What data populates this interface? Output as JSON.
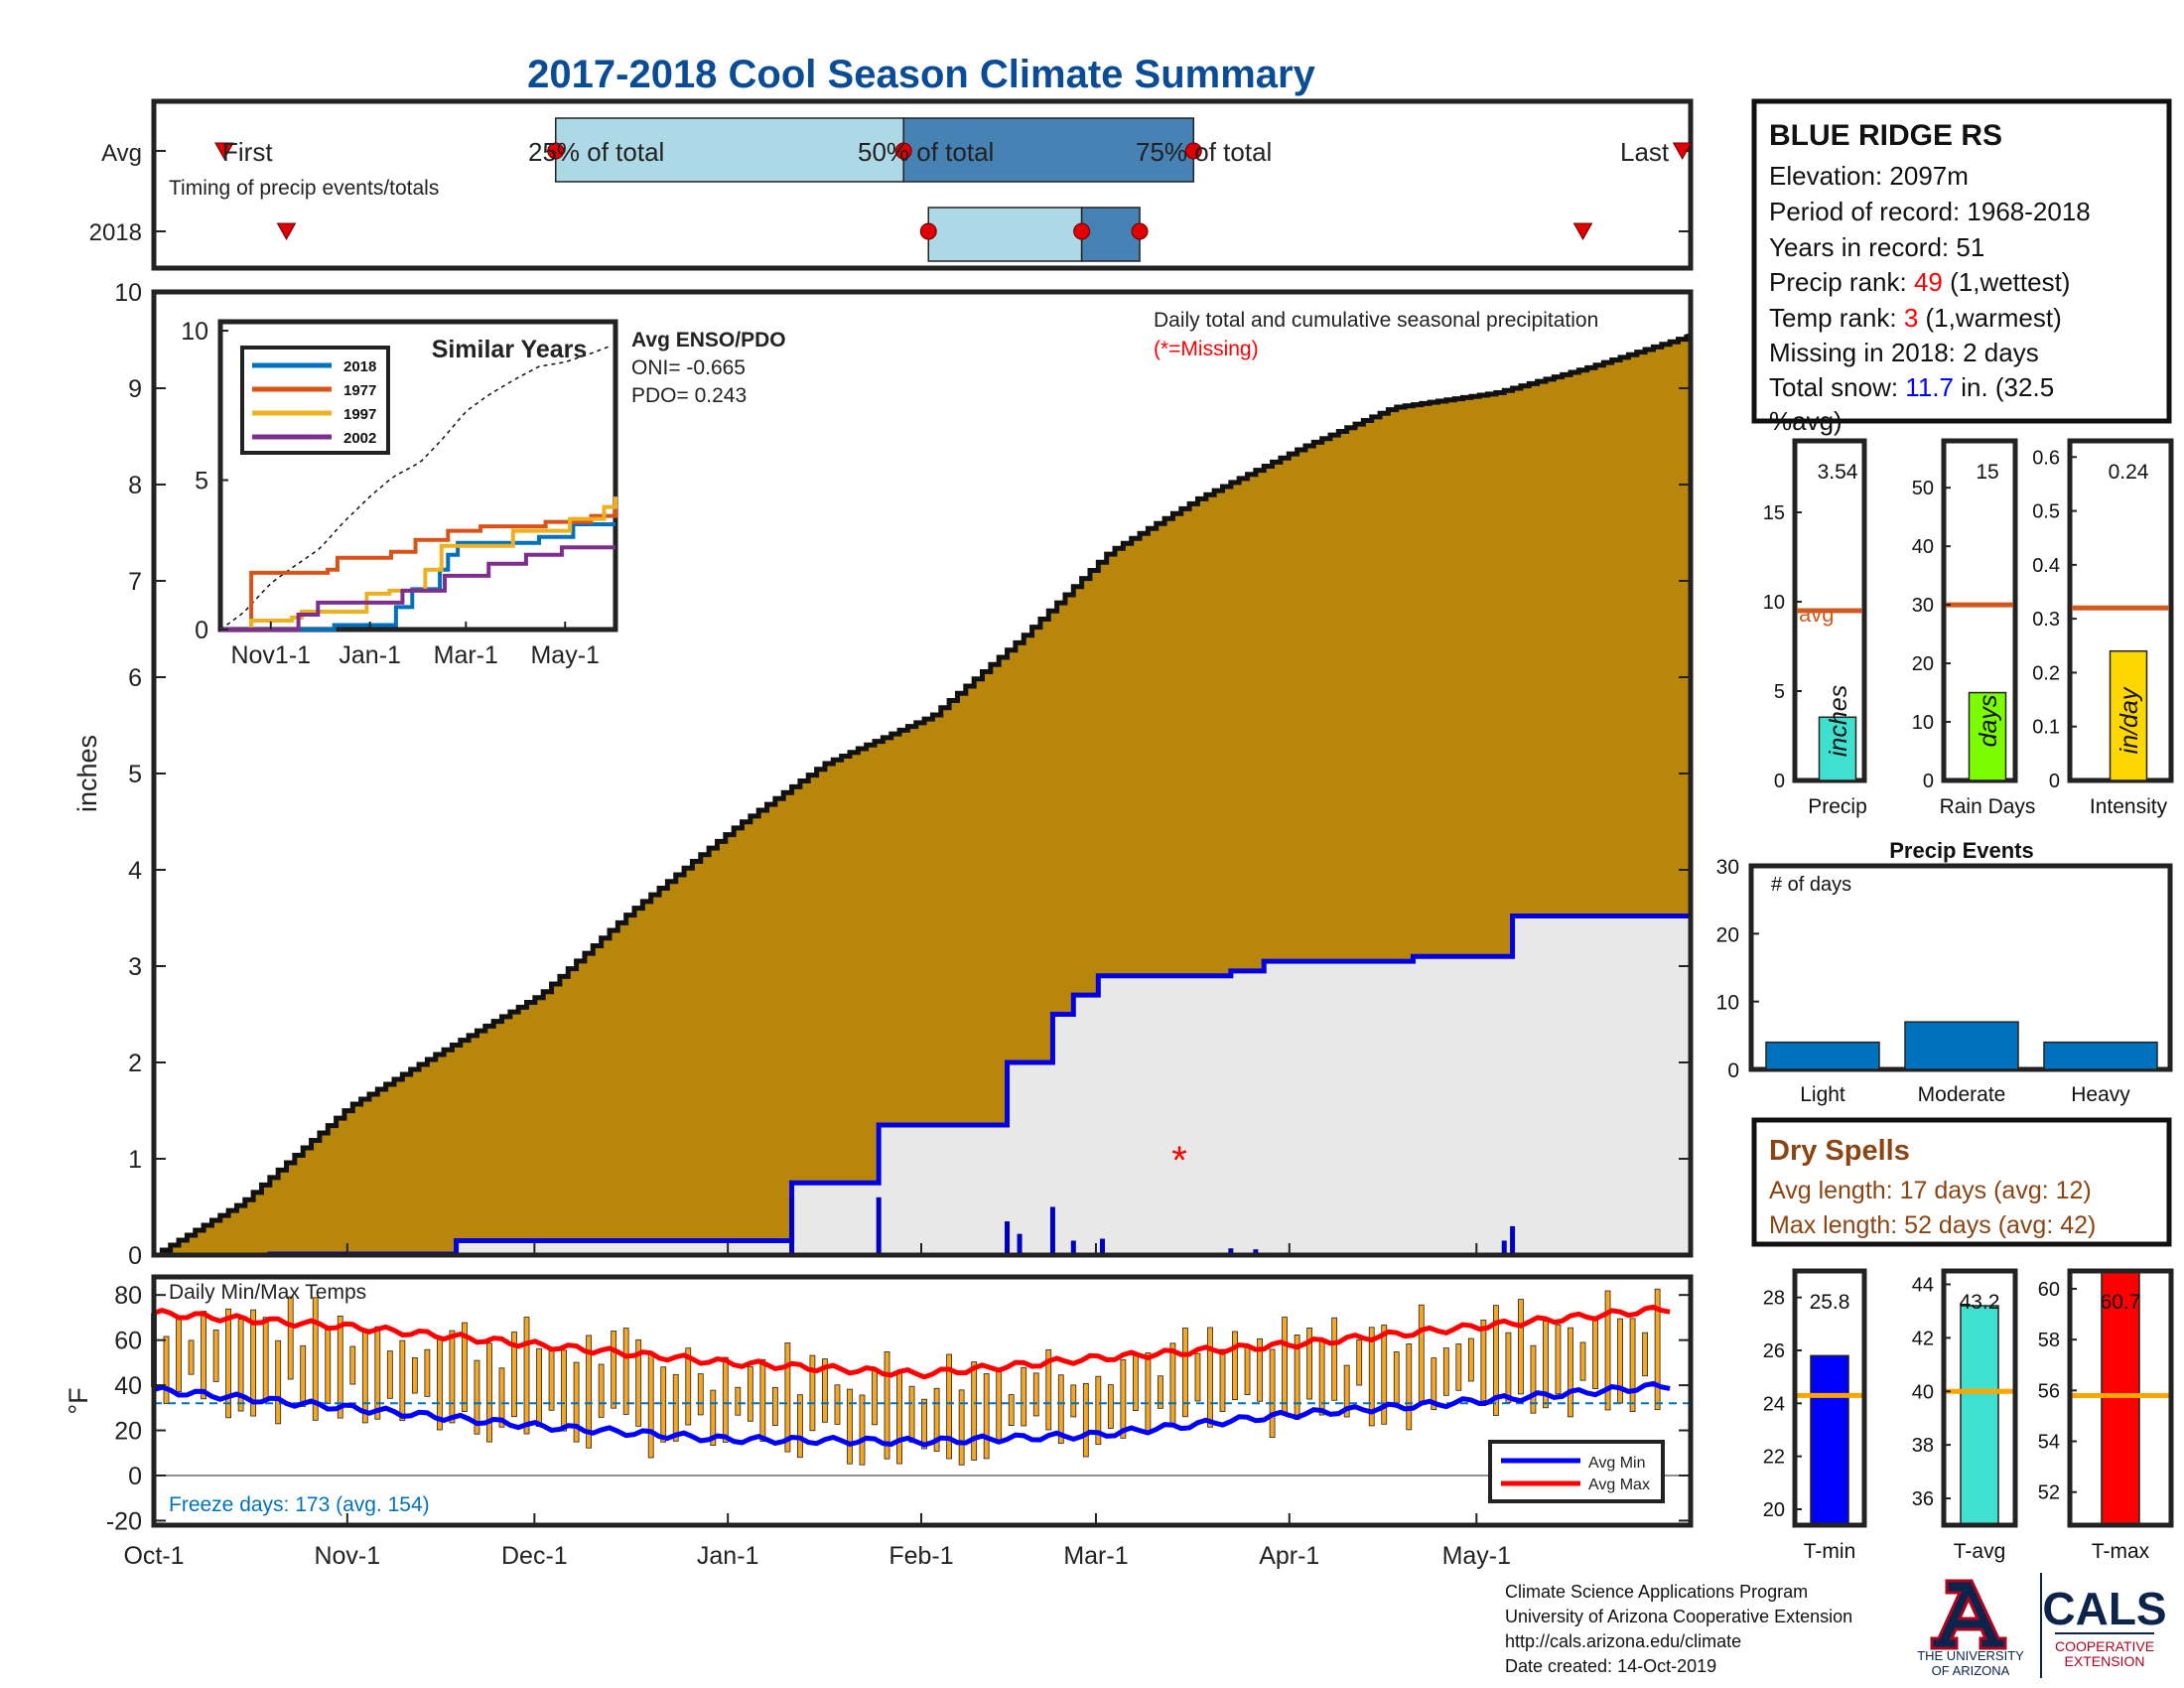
{
  "title": "2017-2018 Cool Season Climate Summary",
  "colors": {
    "title": "#0B4C96",
    "precip_fill": "#B8860B",
    "rain_fill": "#E9E8E8",
    "q_light": "#ADD8E6",
    "q_dark": "#4682B4",
    "marker": "#E00000",
    "tmin": "#0000FF",
    "tmax": "#FF0000",
    "bar_orange": "#F5A623",
    "precip_bar": "#40E0D0",
    "rain_bar": "#7CFC00",
    "intensity_bar": "#FFD700",
    "avg_line": "#D2591E",
    "events_bar": "#0072BD",
    "dry": "#8B4513",
    "count_blue": "#0000FF",
    "rank_red": "#FF0000"
  },
  "timing_panel": {
    "rows": [
      "Avg",
      "2018"
    ],
    "avg_labels": [
      "First",
      "25% of total",
      "50% of total",
      "75% of total",
      "Last"
    ],
    "subtitle": "Timing of precip events/totals",
    "avg_points": {
      "first": 17,
      "q25": 97,
      "q50": 181,
      "q75": 251,
      "last": 369
    },
    "y2018_points": {
      "first": 32,
      "q25": 187,
      "q50": 224,
      "q75": 238,
      "last": 345
    }
  },
  "station": {
    "name": "BLUE RIDGE RS",
    "elevation_text": "Elevation: 2097m",
    "period_text": "Period of record: 1968-2018",
    "years_text": "Years in record: 51",
    "precip_rank_prefix": "Precip rank: ",
    "precip_rank_value": "49",
    "precip_rank_suffix": " (1,wettest)",
    "temp_rank_prefix": "Temp rank: ",
    "temp_rank_value": "3",
    "temp_rank_suffix": " (1,warmest)",
    "missing_text": "Missing in 2018: 2 days",
    "snow_prefix": "Total snow: ",
    "snow_value": "11.7",
    "snow_suffix": " in. (32.5",
    "snow_line2": "%avg)"
  },
  "main_chart": {
    "ylabel": "inches",
    "note": "Daily total and cumulative seasonal precipitation",
    "missing_note": "(*=Missing)",
    "enso_title": "Avg ENSO/PDO",
    "oni_text": "ONI= -0.665",
    "pdo_text": "PDO= 0.243",
    "yticks": [
      "0",
      "1",
      "2",
      "3",
      "4",
      "5",
      "6",
      "7",
      "8",
      "9",
      "10"
    ],
    "xticks": [
      "Oct-1",
      "Nov-1",
      "Dec-1",
      "Jan-1",
      "Feb-1",
      "Mar-1",
      "Apr-1",
      "May-1"
    ],
    "missing_marker": "*"
  },
  "inset": {
    "title": "Similar Years",
    "yticks": [
      "0",
      "5",
      "10"
    ],
    "xticks": [
      "Nov1-1",
      "Jan-1",
      "Mar-1",
      "May-1"
    ],
    "legend": [
      {
        "name": "2018",
        "color": "#0072BD"
      },
      {
        "name": "1977",
        "color": "#D95319"
      },
      {
        "name": "1997",
        "color": "#EDB120"
      },
      {
        "name": "2002",
        "color": "#7E2F8E"
      }
    ]
  },
  "temp_chart": {
    "title": "Daily Min/Max Temps",
    "ylabel": "°F",
    "yticks": [
      "80",
      "60",
      "40",
      "20",
      "0",
      "-20"
    ],
    "freeze_text": "Freeze days: 173 (avg. 154)",
    "legend_min": "Avg Min",
    "legend_max": "Avg Max"
  },
  "small_bars": [
    {
      "value_label": "3.54",
      "unit": "inches",
      "xlabel": "Precip",
      "avg_label": "avg",
      "yticks": [
        "0",
        "5",
        "10",
        "15"
      ]
    },
    {
      "value_label": "15",
      "unit": "days",
      "xlabel": "Rain Days",
      "yticks": [
        "0",
        "10",
        "20",
        "30",
        "40",
        "50"
      ]
    },
    {
      "value_label": "0.24",
      "unit": "in/day",
      "xlabel": "Intensity",
      "yticks": [
        "0",
        "0.1",
        "0.2",
        "0.3",
        "0.4",
        "0.5",
        "0.6"
      ]
    }
  ],
  "events": {
    "title": "Precip Events",
    "ylabel_note": "# of days",
    "yticks": [
      "0",
      "10",
      "20",
      "30"
    ],
    "categories": [
      "Light",
      "Moderate",
      "Heavy"
    ]
  },
  "dry_spells": {
    "title": "Dry Spells",
    "avg_text": "Avg length: 17 days (avg: 12)",
    "max_text": "Max length: 52 days (avg: 42)"
  },
  "temp_bars": [
    {
      "value_label": "25.8",
      "xlabel": "T-min",
      "yticks": [
        "20",
        "22",
        "24",
        "26",
        "28"
      ]
    },
    {
      "value_label": "43.2",
      "xlabel": "T-avg",
      "yticks": [
        "36",
        "38",
        "40",
        "42",
        "44"
      ]
    },
    {
      "value_label": "60.7",
      "xlabel": "T-max",
      "yticks": [
        "52",
        "54",
        "56",
        "58",
        "60"
      ]
    }
  ],
  "footer": {
    "line1": "Climate Science Applications Program",
    "line2": "University of Arizona Cooperative Extension",
    "line3": "http://cals.arizona.edu/climate",
    "line4": " Date created: 14-Oct-2019",
    "ua_line1": "THE UNIVERSITY",
    "ua_line2": "OF ARIZONA",
    "cals": "CALS",
    "coop1": "COOPERATIVE",
    "coop2": "EXTENSION"
  },
  "chart_data": [
    {
      "type": "area",
      "title": "Daily total and cumulative seasonal precipitation",
      "ylabel": "inches",
      "ylim": [
        0,
        10
      ],
      "x": [
        "Oct-1",
        "Oct-15",
        "Nov-1",
        "Nov-15",
        "Dec-1",
        "Dec-15",
        "Jan-1",
        "Jan-15",
        "Feb-1",
        "Feb-15",
        "Mar-1",
        "Mar-15",
        "Apr-1",
        "Apr-15",
        "May-1",
        "May-15",
        "May-31"
      ],
      "series": [
        {
          "name": "Avg cumulative",
          "values": [
            0,
            0.55,
            1.55,
            2.1,
            2.7,
            3.55,
            4.45,
            5.1,
            5.6,
            6.4,
            7.3,
            7.85,
            8.4,
            8.8,
            8.95,
            9.2,
            9.55
          ]
        },
        {
          "name": "2018 cumulative",
          "values": [
            0,
            0,
            0,
            0,
            0.15,
            0.15,
            0.15,
            0.75,
            1.35,
            2.0,
            2.9,
            2.9,
            3.1,
            3.1,
            3.1,
            3.52,
            3.52
          ]
        }
      ]
    },
    {
      "type": "line",
      "title": "Daily Min/Max Temps",
      "ylabel": "°F",
      "ylim": [
        -20,
        80
      ],
      "x": [
        "Oct-1",
        "Nov-1",
        "Dec-1",
        "Jan-1",
        "Feb-1",
        "Mar-1",
        "Apr-1",
        "May-1",
        "May-31"
      ],
      "series": [
        {
          "name": "Avg Max",
          "values": [
            72,
            66,
            58,
            50,
            45,
            52,
            58,
            66,
            74
          ]
        },
        {
          "name": "Avg Min",
          "values": [
            38,
            30,
            22,
            16,
            15,
            18,
            27,
            33,
            40
          ]
        }
      ]
    },
    {
      "type": "line",
      "title": "Similar Years",
      "ylim": [
        0,
        10
      ],
      "x": [
        "Oct-1",
        "Nov-1",
        "Jan-1",
        "Mar-1",
        "May-1",
        "May-31"
      ],
      "series": [
        {
          "name": "2018",
          "values": [
            0,
            0,
            0.15,
            2.9,
            3.1,
            3.52
          ]
        },
        {
          "name": "1977",
          "values": [
            0,
            1.9,
            2.4,
            3.6,
            4.05,
            4.05
          ]
        },
        {
          "name": "1997",
          "values": [
            0,
            0.3,
            0.6,
            2.8,
            4.1,
            4.45
          ]
        },
        {
          "name": "2002",
          "values": [
            0,
            0,
            0.9,
            2.2,
            2.75,
            2.75
          ]
        }
      ]
    },
    {
      "type": "bar",
      "title": "Precip",
      "categories": [
        "Precip"
      ],
      "values": [
        3.54
      ],
      "avg": 9.5,
      "ylim": [
        0,
        19
      ]
    },
    {
      "type": "bar",
      "title": "Rain Days",
      "categories": [
        "Rain Days"
      ],
      "values": [
        15
      ],
      "avg": 30,
      "ylim": [
        0,
        58
      ]
    },
    {
      "type": "bar",
      "title": "Intensity",
      "categories": [
        "Intensity"
      ],
      "values": [
        0.24
      ],
      "avg": 0.32,
      "ylim": [
        0,
        0.63
      ]
    },
    {
      "type": "bar",
      "title": "Precip Events",
      "categories": [
        "Light",
        "Moderate",
        "Heavy"
      ],
      "values": [
        4,
        7,
        4
      ],
      "ylim": [
        0,
        30
      ]
    },
    {
      "type": "bar",
      "title": "T-min",
      "categories": [
        "T-min"
      ],
      "values": [
        25.8
      ],
      "avg": 24.3,
      "ylim": [
        19.4,
        29
      ]
    },
    {
      "type": "bar",
      "title": "T-avg",
      "categories": [
        "T-avg"
      ],
      "values": [
        43.2
      ],
      "avg": 40,
      "ylim": [
        35,
        44.5
      ]
    },
    {
      "type": "bar",
      "title": "T-max",
      "categories": [
        "T-max"
      ],
      "values": [
        60.7
      ],
      "avg": 55.8,
      "ylim": [
        50.7,
        60.7
      ]
    }
  ]
}
